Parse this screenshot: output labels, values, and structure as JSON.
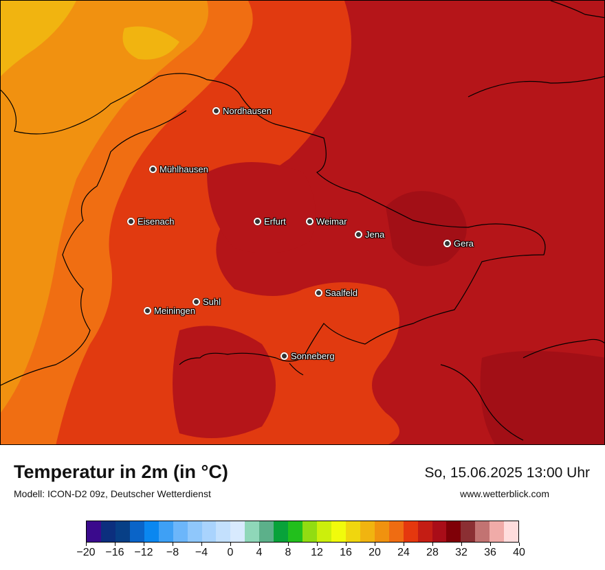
{
  "map": {
    "cities": [
      {
        "name": "Nordhausen"
      },
      {
        "name": "Mühlhausen"
      },
      {
        "name": "Eisenach"
      },
      {
        "name": "Erfurt"
      },
      {
        "name": "Weimar"
      },
      {
        "name": "Jena"
      },
      {
        "name": "Gera"
      },
      {
        "name": "Suhl"
      },
      {
        "name": "Meiningen"
      },
      {
        "name": "Saalfeld"
      },
      {
        "name": "Sonneberg"
      }
    ]
  },
  "footer": {
    "title": "Temperatur in 2m (in °C)",
    "subtitle": "Modell: ICON-D2 09z, Deutscher Wetterdienst",
    "datetime": "So, 15.06.2025 13:00 Uhr",
    "website": "www.wetterblick.com"
  },
  "legend": {
    "tick_labels": [
      "−20",
      "−16",
      "−12",
      "−8",
      "−4",
      "0",
      "4",
      "8",
      "12",
      "16",
      "20",
      "24",
      "28",
      "32",
      "36",
      "40"
    ],
    "colors": [
      "#3a0a8c",
      "#0c2f7e",
      "#073f86",
      "#0a64c8",
      "#0a87f0",
      "#3ea0f5",
      "#6cb6fa",
      "#8fc7fb",
      "#a9d3fd",
      "#c3e0fd",
      "#d8eafe",
      "#8fd7b9",
      "#5cb08a",
      "#08a23a",
      "#22bf1c",
      "#92dc12",
      "#ccef0c",
      "#f1fb0c",
      "#f0d60e",
      "#f1b410",
      "#f0920f",
      "#ef6c12",
      "#e5380e",
      "#c41d14",
      "#a90d18",
      "#7f0007",
      "#8b2f33",
      "#c27372",
      "#f0aba8",
      "#ffdddd"
    ]
  }
}
